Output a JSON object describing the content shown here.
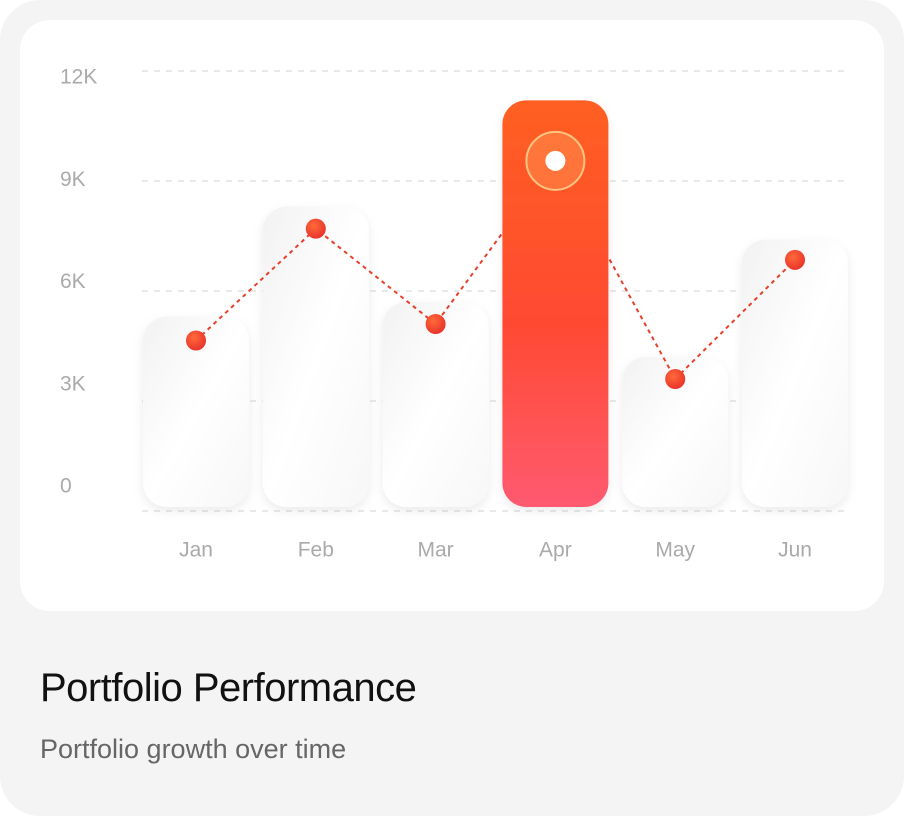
{
  "chart_data": {
    "type": "bar",
    "title": "Portfolio Performance",
    "subtitle": "Portfolio growth over time",
    "categories": [
      "Jan",
      "Feb",
      "Mar",
      "Apr",
      "May",
      "Jun"
    ],
    "series": [
      {
        "type": "bar",
        "color": "#ffffff",
        "highlight_color": "#ff5a2a",
        "values": [
          5300,
          8300,
          5700,
          11200,
          4200,
          7400
        ]
      },
      {
        "type": "line",
        "color": "#e8402a",
        "values": [
          4650,
          7700,
          5100,
          9550,
          3600,
          6850
        ]
      }
    ],
    "highlight": 3,
    "ylim": [
      0,
      12000
    ],
    "yticks": [
      {
        "value": 0,
        "label": "0"
      },
      {
        "value": 3000,
        "label": "3K"
      },
      {
        "value": 6000,
        "label": "6K"
      },
      {
        "value": 9000,
        "label": "9K"
      },
      {
        "value": 12000,
        "label": "12K"
      }
    ],
    "grid": true
  }
}
